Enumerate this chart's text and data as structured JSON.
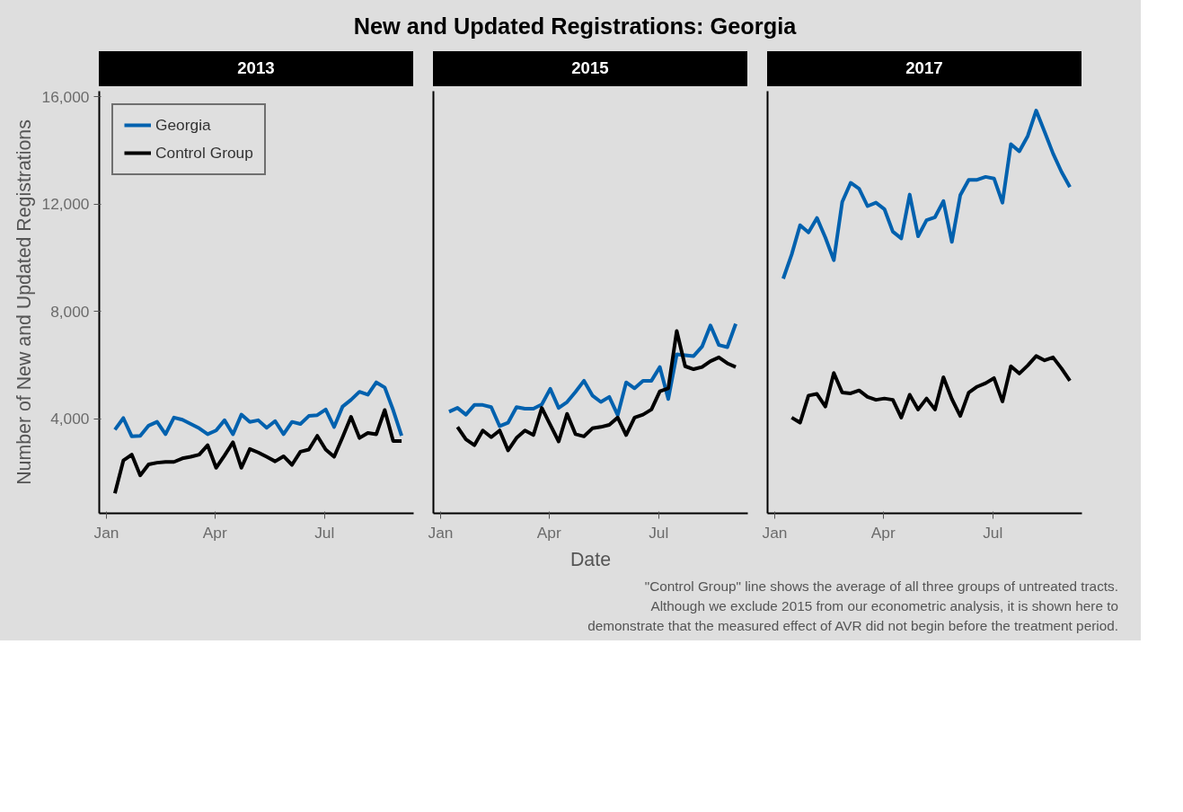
{
  "chart_data": [
    {
      "type": "line",
      "subtitle": "2013",
      "ylabel": "Number of New and Updated Registrations",
      "x": [
        "2013-01-08",
        "2013-01-15",
        "2013-01-22",
        "2013-01-29",
        "2013-02-05",
        "2013-02-12",
        "2013-02-19",
        "2013-02-26",
        "2013-03-05",
        "2013-03-12",
        "2013-03-19",
        "2013-03-26",
        "2013-04-02",
        "2013-04-09",
        "2013-04-16",
        "2013-04-23",
        "2013-04-30",
        "2013-05-07",
        "2013-05-14",
        "2013-05-21",
        "2013-05-28",
        "2013-06-04",
        "2013-06-11",
        "2013-06-18",
        "2013-06-25",
        "2013-07-02",
        "2013-07-09",
        "2013-07-16",
        "2013-07-23",
        "2013-07-30",
        "2013-08-06",
        "2013-08-13",
        "2013-08-20",
        "2013-08-27",
        "2013-09-03"
      ],
      "series": [
        {
          "name": "Georgia",
          "color": "#0061ae",
          "values": [
            3600,
            4030,
            3350,
            3370,
            3750,
            3890,
            3430,
            4050,
            3970,
            3810,
            3650,
            3430,
            3570,
            3950,
            3430,
            4160,
            3890,
            3950,
            3670,
            3920,
            3430,
            3890,
            3810,
            4110,
            4140,
            4350,
            3700,
            4460,
            4710,
            5010,
            4900,
            5360,
            5170,
            4330,
            3370
          ]
        },
        {
          "name": "Control Group",
          "color": "#000000",
          "values": [
            1230,
            2450,
            2670,
            1900,
            2310,
            2370,
            2400,
            2400,
            2530,
            2590,
            2670,
            3020,
            2180,
            2640,
            3130,
            2180,
            2880,
            2750,
            2590,
            2420,
            2610,
            2290,
            2780,
            2860,
            3370,
            2860,
            2590,
            3320,
            4080,
            3290,
            3480,
            3430,
            4330,
            3180,
            3180
          ]
        }
      ],
      "xlim": [
        "2012-12-26",
        "2013-09-13"
      ],
      "xticks": [
        {
          "value": "2013-01-01",
          "label": "Jan"
        },
        {
          "value": "2013-04-01",
          "label": "Apr"
        },
        {
          "value": "2013-07-01",
          "label": "Jul"
        }
      ],
      "ylim": [
        485,
        16200
      ],
      "yticks": [
        {
          "value": 4000,
          "label": "4,000"
        },
        {
          "value": 8000,
          "label": "8,000"
        },
        {
          "value": 12000,
          "label": "12,000"
        },
        {
          "value": 16000,
          "label": "16,000"
        }
      ],
      "legend": "top left"
    },
    {
      "type": "line",
      "title": "New and Updated Registrations: Georgia",
      "subtitle": "2015",
      "xlabel": "Date",
      "x": [
        "2015-01-08",
        "2015-01-15",
        "2015-01-22",
        "2015-01-29",
        "2015-02-05",
        "2015-02-12",
        "2015-02-19",
        "2015-02-26",
        "2015-03-05",
        "2015-03-12",
        "2015-03-19",
        "2015-03-26",
        "2015-04-02",
        "2015-04-09",
        "2015-04-16",
        "2015-04-23",
        "2015-04-30",
        "2015-05-07",
        "2015-05-14",
        "2015-05-21",
        "2015-05-28",
        "2015-06-04",
        "2015-06-11",
        "2015-06-18",
        "2015-06-25",
        "2015-07-02",
        "2015-07-09",
        "2015-07-16",
        "2015-07-23",
        "2015-07-30",
        "2015-08-06",
        "2015-08-13",
        "2015-08-20",
        "2015-08-27",
        "2015-09-03"
      ],
      "series": [
        {
          "color": "#0061ae",
          "values": [
            4270,
            4410,
            4160,
            4520,
            4520,
            4440,
            3730,
            3860,
            4440,
            4380,
            4380,
            4540,
            5120,
            4410,
            4630,
            5010,
            5420,
            4870,
            4630,
            4820,
            4140,
            5360,
            5140,
            5420,
            5420,
            5930,
            4740,
            6400,
            6370,
            6340,
            6690,
            7480,
            6750,
            6670,
            7540
          ]
        },
        {
          "color": "#000000",
          "values": [
            null,
            3700,
            3240,
            3020,
            3570,
            3320,
            3570,
            2830,
            3290,
            3570,
            3400,
            4410,
            3780,
            3160,
            4190,
            3430,
            3350,
            3650,
            3700,
            3780,
            4050,
            3400,
            4050,
            4160,
            4350,
            5030,
            5140,
            7270,
            5960,
            5850,
            5930,
            6150,
            6290,
            6070,
            5930
          ]
        }
      ],
      "xlim": [
        "2014-12-26",
        "2015-09-13"
      ],
      "xticks": [
        {
          "value": "2015-01-01",
          "label": "Jan"
        },
        {
          "value": "2015-04-01",
          "label": "Apr"
        },
        {
          "value": "2015-07-01",
          "label": "Jul"
        }
      ],
      "ylim": [
        485,
        16200
      ],
      "tick_labels": "x"
    },
    {
      "type": "line",
      "subtitle": "2017",
      "x": [
        "2017-01-08",
        "2017-01-15",
        "2017-01-22",
        "2017-01-29",
        "2017-02-05",
        "2017-02-12",
        "2017-02-19",
        "2017-02-26",
        "2017-03-05",
        "2017-03-12",
        "2017-03-19",
        "2017-03-26",
        "2017-04-02",
        "2017-04-09",
        "2017-04-16",
        "2017-04-23",
        "2017-04-30",
        "2017-05-07",
        "2017-05-14",
        "2017-05-21",
        "2017-05-28",
        "2017-06-04",
        "2017-06-11",
        "2017-06-18",
        "2017-06-25",
        "2017-07-02",
        "2017-07-09",
        "2017-07-16",
        "2017-07-23",
        "2017-07-30",
        "2017-08-06",
        "2017-08-13",
        "2017-08-20",
        "2017-08-27",
        "2017-09-03"
      ],
      "series": [
        {
          "color": "#0061ae",
          "values": [
            9220,
            10120,
            11210,
            10940,
            11480,
            10750,
            9910,
            12080,
            12790,
            12570,
            11920,
            12050,
            11810,
            10970,
            10720,
            12350,
            10800,
            11400,
            11510,
            12110,
            10590,
            12330,
            12900,
            12900,
            13010,
            12950,
            12050,
            14230,
            13960,
            14530,
            15480,
            14690,
            13880,
            13200,
            12630
          ]
        },
        {
          "color": "#000000",
          "values": [
            null,
            4050,
            3860,
            4870,
            4930,
            4460,
            5710,
            4980,
            4950,
            5060,
            4820,
            4710,
            4760,
            4710,
            4050,
            4900,
            4350,
            4760,
            4350,
            5550,
            4740,
            4110,
            4980,
            5200,
            5330,
            5520,
            4650,
            5960,
            5690,
            5990,
            6340,
            6180,
            6290,
            5880,
            5420
          ]
        }
      ],
      "xlim": [
        "2016-12-26",
        "2017-09-13"
      ],
      "xticks": [
        {
          "value": "2017-01-01",
          "label": "Jan"
        },
        {
          "value": "2017-04-01",
          "label": "Apr"
        },
        {
          "value": "2017-07-01",
          "label": "Jul"
        }
      ],
      "ylim": [
        485,
        16200
      ],
      "tick_labels": "x",
      "annotations": [
        "\"Control Group\" line shows the average of all three groups of untreated tracts.",
        "Although we exclude 2015 from our econometric analysis, it is shown here to",
        "demonstrate that the measured effect of AVR did not begin before the treatment period."
      ]
    }
  ]
}
